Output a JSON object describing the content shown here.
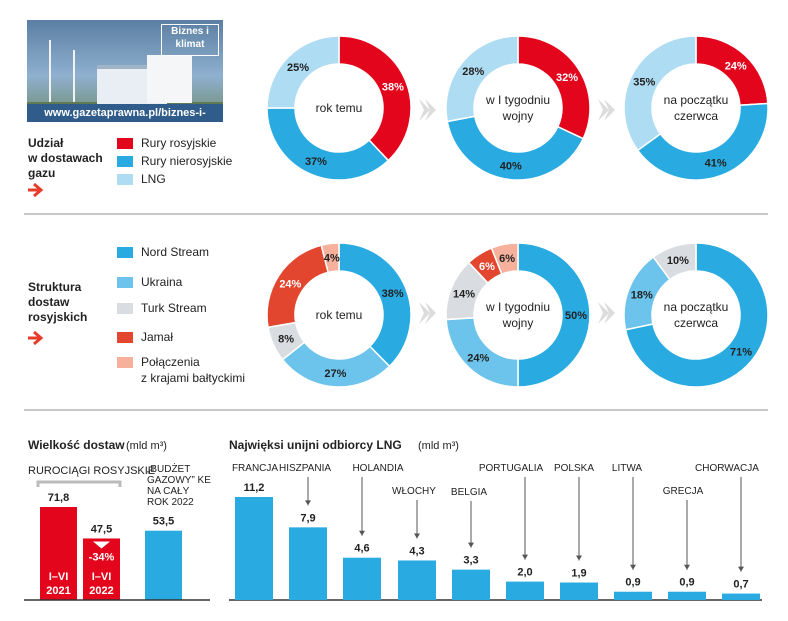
{
  "logo": {
    "badge": "Biznes i klimat",
    "url": "www.gazetaprawna.pl/biznes-i-klimat/"
  },
  "colors": {
    "red": "#e2051b",
    "blue": "#29abe2",
    "light_blue": "#aedcf3",
    "sky": "#6cc3ec",
    "grey": "#d9dce0",
    "orange_red": "#e2462f",
    "salmon": "#f6b09c",
    "separator": "#c8c8c8",
    "arrow_grey": "#dcdcdc",
    "accent_arrow": "#e63c2a"
  },
  "section1": {
    "title": "Udział w dostawach gazu",
    "legend": [
      {
        "label": "Rury rosyjskie",
        "color": "#e2051b"
      },
      {
        "label": "Rury nierosyjskie",
        "color": "#29abe2"
      },
      {
        "label": "LNG",
        "color": "#aedcf3"
      }
    ]
  },
  "section2": {
    "title": "Struktura dostaw rosyjskich",
    "legend": [
      {
        "label": "Nord Stream",
        "color": "#29abe2"
      },
      {
        "label": "Ukraina",
        "color": "#6cc3ec"
      },
      {
        "label": "Turk Stream",
        "color": "#d9dce0"
      },
      {
        "label": "Jamał",
        "color": "#e2462f"
      },
      {
        "label": "Połączenia z krajami bałtyckimi",
        "color": "#f6b09c"
      }
    ]
  },
  "chart_data": [
    {
      "type": "pie",
      "title": "Udział w dostawach gazu",
      "panels": [
        {
          "center_label": "rok temu",
          "slices": [
            {
              "name": "Rury rosyjskie",
              "value": 38,
              "label": "38%"
            },
            {
              "name": "Rury nierosyjskie",
              "value": 37,
              "label": "37%"
            },
            {
              "name": "LNG",
              "value": 25,
              "label": "25%"
            }
          ]
        },
        {
          "center_label": "w I tygodniu wojny",
          "slices": [
            {
              "name": "Rury rosyjskie",
              "value": 32,
              "label": "32%"
            },
            {
              "name": "Rury nierosyjskie",
              "value": 40,
              "label": "40%"
            },
            {
              "name": "LNG",
              "value": 28,
              "label": "28%"
            }
          ]
        },
        {
          "center_label": "na początku czerwca",
          "slices": [
            {
              "name": "Rury rosyjskie",
              "value": 24,
              "label": "24%"
            },
            {
              "name": "Rury nierosyjskie",
              "value": 41,
              "label": "41%"
            },
            {
              "name": "LNG",
              "value": 35,
              "label": "35%"
            }
          ]
        }
      ]
    },
    {
      "type": "pie",
      "title": "Struktura dostaw rosyjskich",
      "panels": [
        {
          "center_label": "rok temu",
          "slices": [
            {
              "name": "Nord Stream",
              "value": 38,
              "label": "38%"
            },
            {
              "name": "Ukraina",
              "value": 27,
              "label": "27%"
            },
            {
              "name": "Turk Stream",
              "value": 8,
              "label": "8%"
            },
            {
              "name": "Jamał",
              "value": 24,
              "label": "24%"
            },
            {
              "name": "Połączenia z krajami bałtyckimi",
              "value": 4,
              "label": "4%"
            }
          ]
        },
        {
          "center_label": "w I tygodniu wojny",
          "slices": [
            {
              "name": "Nord Stream",
              "value": 50,
              "label": "50%"
            },
            {
              "name": "Ukraina",
              "value": 24,
              "label": "24%"
            },
            {
              "name": "Turk Stream",
              "value": 14,
              "label": "14%"
            },
            {
              "name": "Jamał",
              "value": 6,
              "label": "6%"
            },
            {
              "name": "Połączenia z krajami bałtyckimi",
              "value": 6,
              "label": "6%"
            }
          ]
        },
        {
          "center_label": "na początku czerwca",
          "slices": [
            {
              "name": "Nord Stream",
              "value": 71,
              "label": "71%"
            },
            {
              "name": "Ukraina",
              "value": 18,
              "label": "18%"
            },
            {
              "name": "Turk Stream",
              "value": 10,
              "label": "10%"
            }
          ]
        }
      ]
    },
    {
      "type": "bar",
      "title": "Wielkość dostaw",
      "title_unit": "(mld m³)",
      "group_label": "RUROCIĄGI ROSYJSKIE",
      "bars": [
        {
          "category": "I–VI 2021",
          "value": 71.8,
          "label": "71,8",
          "color": "#e2051b"
        },
        {
          "category": "I–VI 2022",
          "value": 47.5,
          "label": "47,5",
          "color": "#e2051b",
          "change": "-34%"
        },
        {
          "category": "„BUDŻET GAZOWY” KE NA CAŁY ROK 2022",
          "value": 53.5,
          "label": "53,5",
          "color": "#29abe2"
        }
      ]
    },
    {
      "type": "bar",
      "title": "Najwięksi unijni odbiorcy LNG",
      "title_unit": "(mld m³)",
      "categories": [
        "FRANCJA",
        "HISZPANIA",
        "HOLANDIA",
        "WŁOCHY",
        "BELGIA",
        "PORTUGALIA",
        "POLSKA",
        "LITWA",
        "GRECJA",
        "CHORWACJA"
      ],
      "values": [
        11.2,
        7.9,
        4.6,
        4.3,
        3.3,
        2.0,
        1.9,
        0.9,
        0.9,
        0.7
      ],
      "labels": [
        "11,2",
        "7,9",
        "4,6",
        "4,3",
        "3,3",
        "2,0",
        "1,9",
        "0,9",
        "0,9",
        "0,7"
      ],
      "color": "#29abe2"
    }
  ]
}
